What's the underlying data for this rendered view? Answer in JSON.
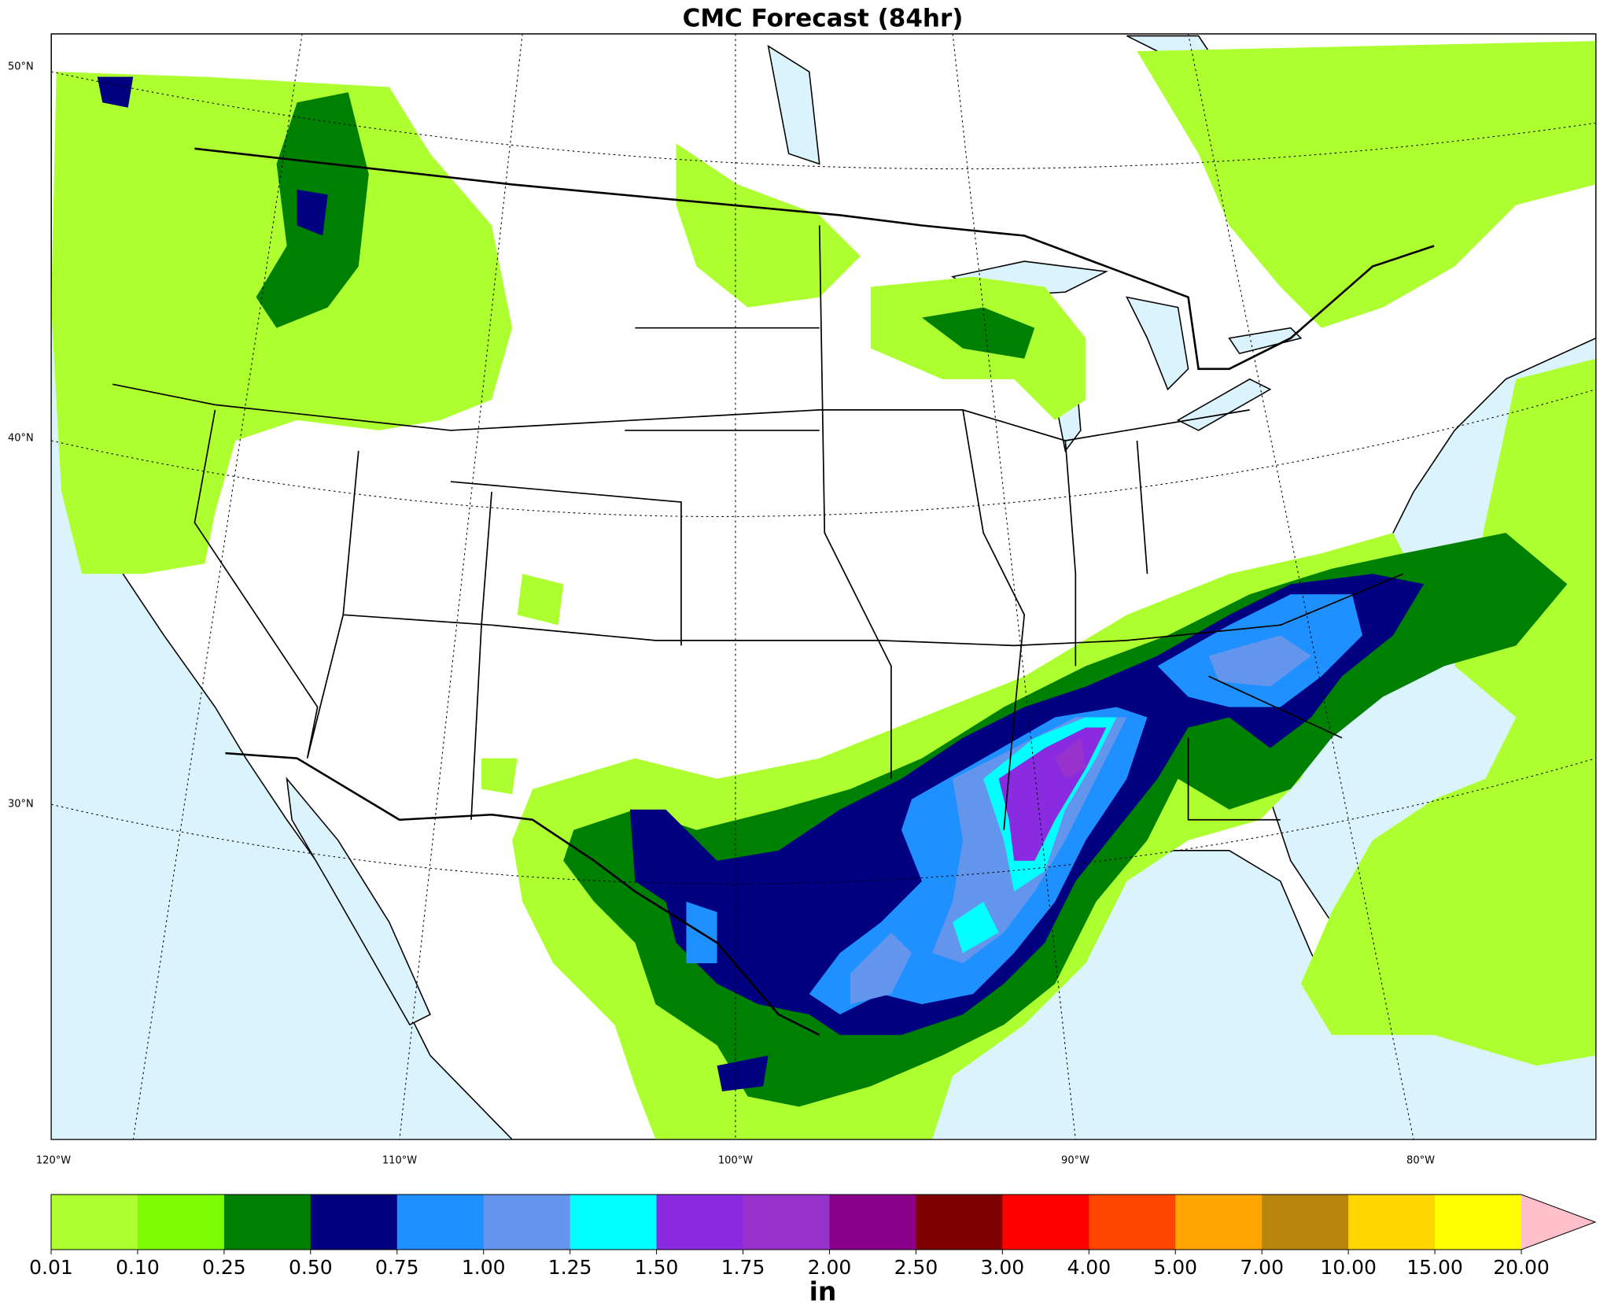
{
  "title": "CMC Forecast (84hr)",
  "map": {
    "lat_labels": [
      "50°N",
      "40°N",
      "30°N"
    ],
    "lon_labels": [
      "120°W",
      "110°W",
      "100°W",
      "90°W",
      "80°W"
    ]
  },
  "colorbar": {
    "levels": [
      "0.01",
      "0.10",
      "0.25",
      "0.50",
      "0.75",
      "1.00",
      "1.25",
      "1.50",
      "1.75",
      "2.00",
      "2.50",
      "3.00",
      "4.00",
      "5.00",
      "7.00",
      "10.00",
      "15.00",
      "20.00"
    ],
    "colors": [
      "#adff2f",
      "#7cfc00",
      "#008000",
      "#000080",
      "#1e90ff",
      "#6495ed",
      "#00ffff",
      "#8a2be2",
      "#9932cc",
      "#8b008b",
      "#800000",
      "#ff0000",
      "#ff4500",
      "#ffa500",
      "#b8860b",
      "#ffd700",
      "#ffff00"
    ],
    "extend_color": "#ffc0cb",
    "unit": "in"
  }
}
